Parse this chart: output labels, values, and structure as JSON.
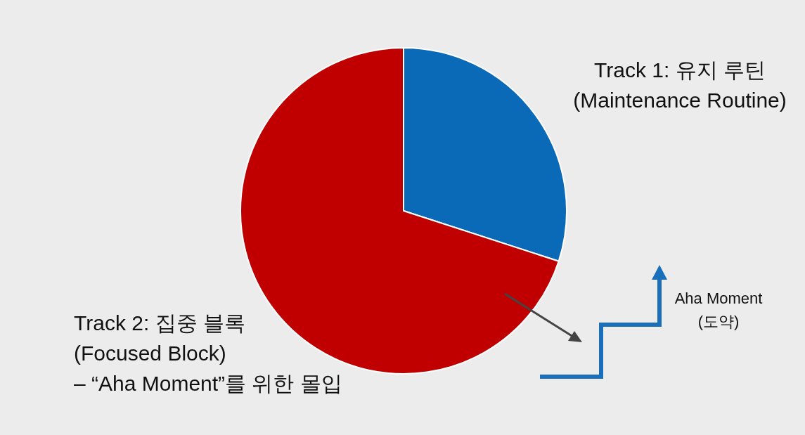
{
  "chart_data": {
    "type": "pie",
    "categories": [
      "Track 1: 유지 루틴\n(Maintenance Routine)",
      "Track 2: 집중 블록\n(Focused Block)\n– “Aha Moment”를 위한 몰입"
    ],
    "values": [
      30,
      70
    ],
    "colors": [
      "#0a6ab8",
      "#c00000"
    ],
    "annotations": [
      "Aha Moment\n(도약)"
    ]
  }
}
